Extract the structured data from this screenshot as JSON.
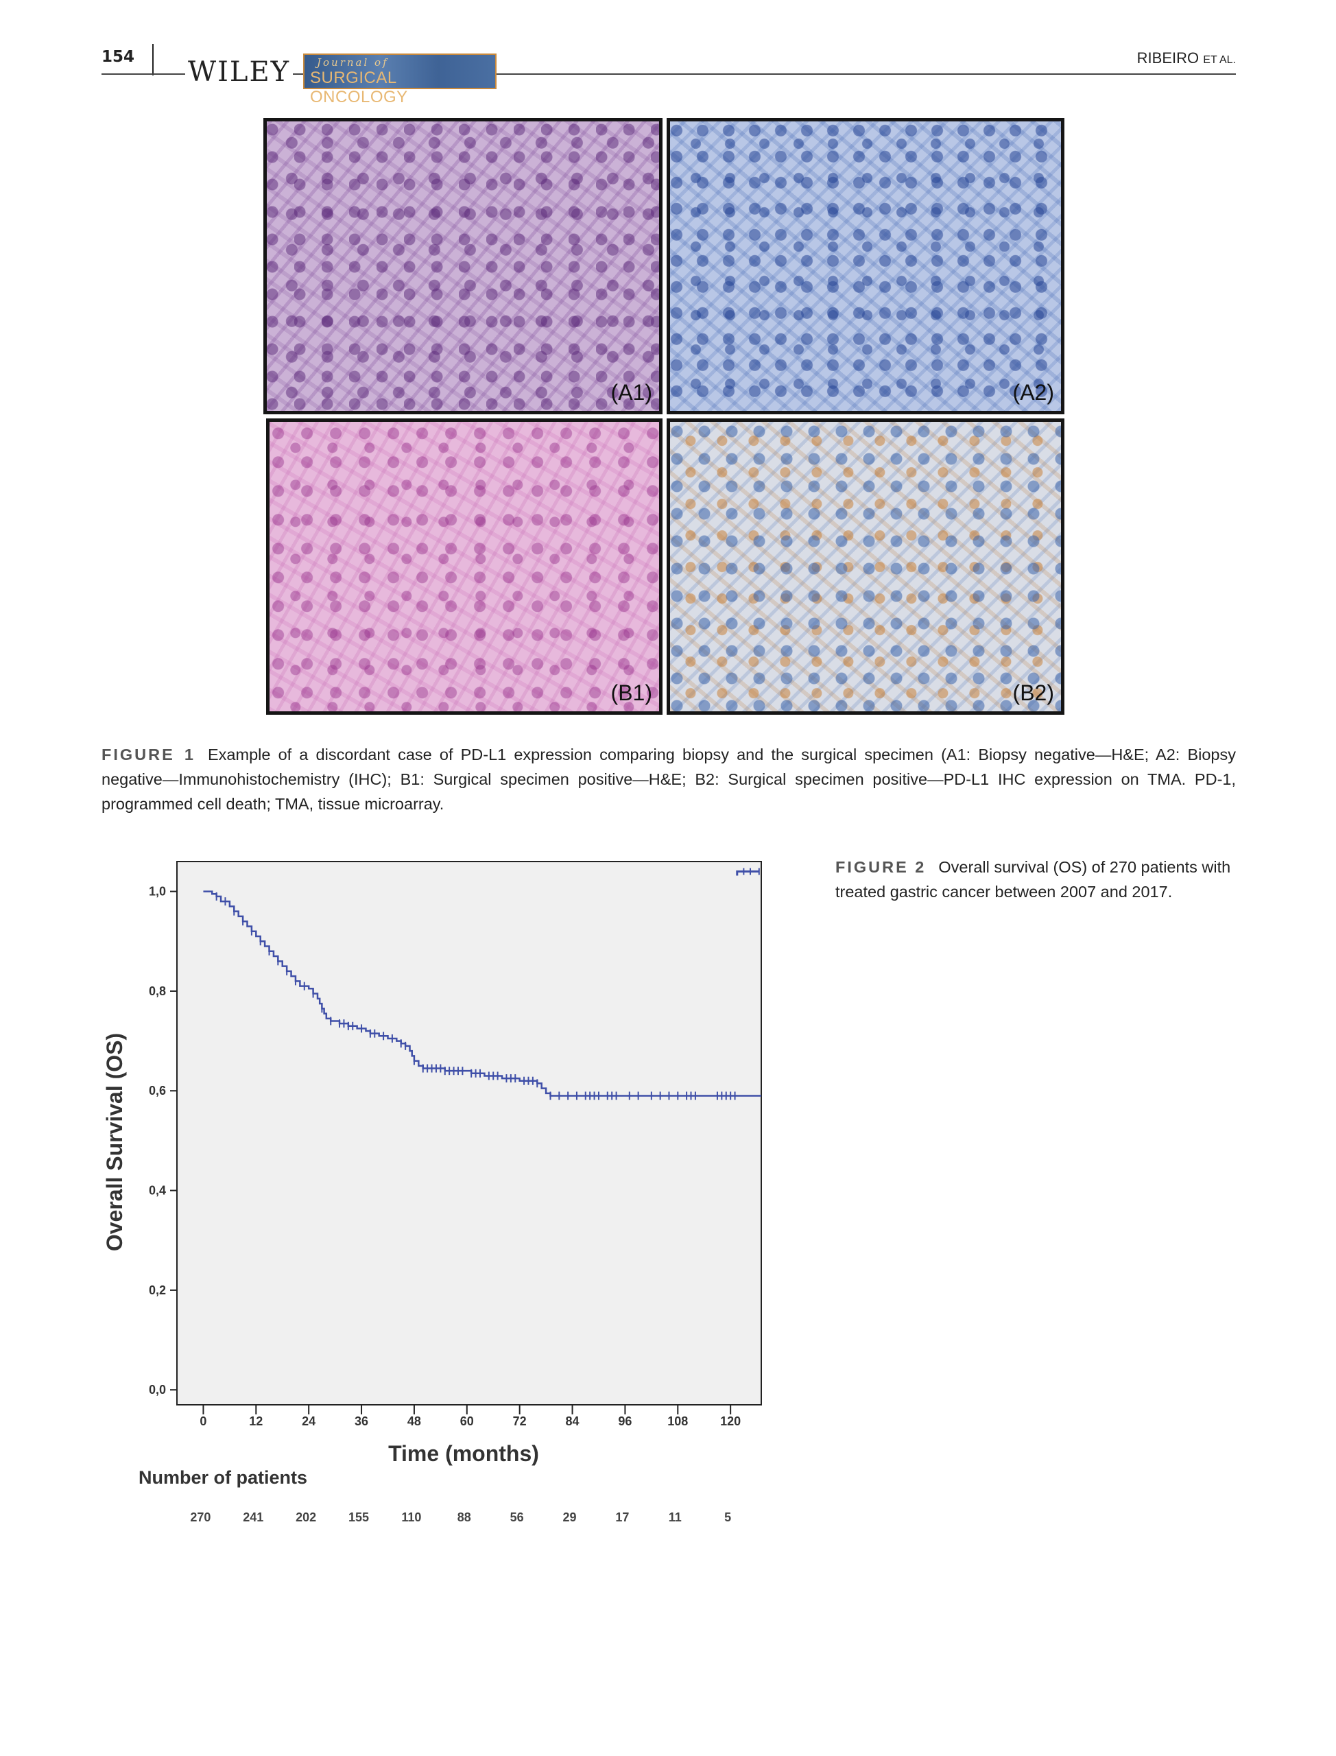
{
  "header": {
    "page_number": "154",
    "publisher": "WILEY",
    "journal_top": "Journal of",
    "journal_bottom": "SURGICAL ONCOLOGY",
    "running_author": "RIBEIRO",
    "running_suffix": "ET AL."
  },
  "figure1": {
    "panels": [
      {
        "label": "(A1)",
        "stain": "H&E"
      },
      {
        "label": "(A2)",
        "stain": "IHC"
      },
      {
        "label": "(B1)",
        "stain": "H&E"
      },
      {
        "label": "(B2)",
        "stain": "PD-L1 IHC"
      }
    ],
    "caption_label": "FIGURE 1",
    "caption_text": "Example of a discordant case of PD-L1 expression comparing biopsy and the surgical specimen (A1: Biopsy negative—H&E; A2: Biopsy negative—Immunohistochemistry (IHC); B1: Surgical specimen positive—H&E; B2: Surgical specimen positive—PD-L1 IHC expression on TMA. PD-1, programmed cell death; TMA, tissue microarray."
  },
  "figure2": {
    "caption_label": "FIGURE 2",
    "caption_text": "Overall survival (OS) of 270 patients with treated gastric cancer between 2007 and 2017."
  },
  "chart_data": {
    "type": "line",
    "subtype": "kaplan-meier",
    "title": "",
    "xlabel": "Time (months)",
    "ylabel": "Overall Survival (OS)",
    "x_ticks": [
      0,
      12,
      24,
      36,
      48,
      60,
      72,
      84,
      96,
      108,
      120
    ],
    "x_tick_labels": [
      "0",
      "12",
      "24",
      "36",
      "48",
      "60",
      "72",
      "84",
      "96",
      "108",
      "120"
    ],
    "y_ticks": [
      0.0,
      0.2,
      0.4,
      0.6,
      0.8,
      1.0
    ],
    "y_tick_labels": [
      "0,0",
      "0,2",
      "0,4",
      "0,6",
      "0,8",
      "1,0"
    ],
    "xlim": [
      -6,
      127
    ],
    "ylim": [
      -0.03,
      1.06
    ],
    "grid": false,
    "background": "#f0f0f0",
    "line_color": "#3f4fa8",
    "series": [
      {
        "name": "",
        "step_points": [
          [
            0,
            1.0
          ],
          [
            2,
            0.995
          ],
          [
            3,
            0.99
          ],
          [
            4,
            0.98
          ],
          [
            6,
            0.97
          ],
          [
            7,
            0.96
          ],
          [
            8,
            0.95
          ],
          [
            9,
            0.94
          ],
          [
            10,
            0.93
          ],
          [
            11,
            0.92
          ],
          [
            12,
            0.91
          ],
          [
            13,
            0.9
          ],
          [
            14,
            0.89
          ],
          [
            15,
            0.88
          ],
          [
            16,
            0.87
          ],
          [
            17,
            0.86
          ],
          [
            18,
            0.85
          ],
          [
            19,
            0.84
          ],
          [
            20,
            0.83
          ],
          [
            21,
            0.82
          ],
          [
            22,
            0.81
          ],
          [
            24,
            0.805
          ],
          [
            25,
            0.795
          ],
          [
            26,
            0.785
          ],
          [
            26.5,
            0.775
          ],
          [
            27,
            0.765
          ],
          [
            27.5,
            0.755
          ],
          [
            28,
            0.745
          ],
          [
            29,
            0.74
          ],
          [
            31,
            0.735
          ],
          [
            33,
            0.73
          ],
          [
            35,
            0.725
          ],
          [
            37,
            0.72
          ],
          [
            38,
            0.715
          ],
          [
            40,
            0.71
          ],
          [
            42,
            0.705
          ],
          [
            44,
            0.7
          ],
          [
            45,
            0.695
          ],
          [
            46,
            0.69
          ],
          [
            47,
            0.68
          ],
          [
            47.5,
            0.67
          ],
          [
            48,
            0.66
          ],
          [
            49,
            0.65
          ],
          [
            50,
            0.645
          ],
          [
            55,
            0.64
          ],
          [
            61,
            0.635
          ],
          [
            64,
            0.63
          ],
          [
            68,
            0.625
          ],
          [
            72,
            0.62
          ],
          [
            76,
            0.615
          ],
          [
            77,
            0.605
          ],
          [
            78,
            0.595
          ],
          [
            79,
            0.59
          ],
          [
            127,
            0.59
          ]
        ],
        "censor_x": [
          3,
          5,
          7,
          9,
          11,
          13,
          15,
          17,
          19,
          21,
          23,
          25,
          27,
          29,
          31,
          32,
          33,
          34,
          36,
          38,
          39,
          41,
          43,
          45,
          46,
          48,
          50,
          51,
          52,
          53,
          54,
          55,
          56,
          57,
          58,
          59,
          61,
          62,
          63,
          65,
          66,
          67,
          69,
          70,
          71,
          73,
          74,
          75,
          76,
          79,
          81,
          83,
          85,
          87,
          88,
          89,
          90,
          92,
          93,
          94,
          97,
          99,
          102,
          104,
          106,
          108,
          110,
          111,
          112,
          117,
          118,
          119,
          120,
          121
        ],
        "tail_segment": {
          "x": [
            121.5,
            126.5
          ],
          "y": 1.04
        }
      }
    ],
    "risk_table": {
      "title": "Number of patients",
      "times": [
        0,
        12,
        24,
        36,
        48,
        60,
        72,
        84,
        96,
        108,
        120
      ],
      "counts": [
        "270",
        "241",
        "202",
        "155",
        "110",
        "88",
        "56",
        "29",
        "17",
        "11",
        "5"
      ]
    }
  }
}
